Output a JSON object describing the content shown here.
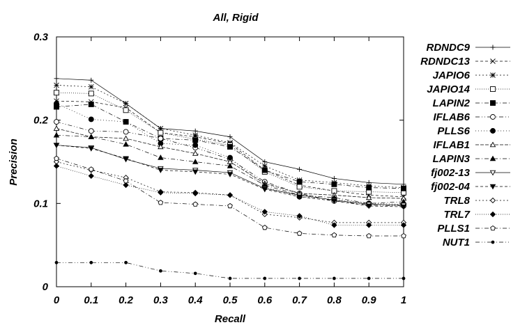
{
  "chart_data": {
    "type": "line",
    "title": "All, Rigid",
    "xlabel": "Recall",
    "ylabel": "Precision",
    "xlim": [
      0,
      1
    ],
    "ylim": [
      0,
      0.3
    ],
    "x": [
      0,
      0.1,
      0.2,
      0.3,
      0.4,
      0.5,
      0.6,
      0.7,
      0.8,
      0.9,
      1
    ],
    "x_ticks": [
      "0",
      "0.1",
      "0.2",
      "0.3",
      "0.4",
      "0.5",
      "0.6",
      "0.7",
      "0.8",
      "0.9",
      "1"
    ],
    "y_ticks": [
      {
        "value": 0,
        "label": "0"
      },
      {
        "value": 0.1,
        "label": "0.1"
      },
      {
        "value": 0.2,
        "label": "0.2"
      },
      {
        "value": 0.3,
        "label": "0.3"
      }
    ],
    "grid": false,
    "legend_position": "right",
    "series": [
      {
        "name": "RDNDC9",
        "marker": "plus",
        "dash": "",
        "values": [
          0.25,
          0.248,
          0.22,
          0.19,
          0.187,
          0.18,
          0.15,
          0.141,
          0.13,
          0.125,
          0.123
        ]
      },
      {
        "name": "RDNDC13",
        "marker": "x",
        "dash": "4,3",
        "values": [
          0.223,
          0.222,
          0.215,
          0.185,
          0.18,
          0.172,
          0.14,
          0.122,
          0.115,
          0.11,
          0.108
        ]
      },
      {
        "name": "JAPIO6",
        "marker": "star",
        "dash": "2,3",
        "values": [
          0.242,
          0.24,
          0.22,
          0.19,
          0.182,
          0.173,
          0.145,
          0.128,
          0.125,
          0.121,
          0.119
        ]
      },
      {
        "name": "JAPIO14",
        "marker": "square-open",
        "dash": "1,2",
        "values": [
          0.233,
          0.232,
          0.212,
          0.185,
          0.177,
          0.17,
          0.138,
          0.12,
          0.115,
          0.114,
          0.113
        ]
      },
      {
        "name": "LAPIN2",
        "marker": "square-filled",
        "dash": "6,3,1,3",
        "values": [
          0.216,
          0.219,
          0.198,
          0.178,
          0.176,
          0.168,
          0.14,
          0.126,
          0.123,
          0.119,
          0.118
        ]
      },
      {
        "name": "IFLAB6",
        "marker": "circle-open",
        "dash": "6,3,1,3,1,3",
        "values": [
          0.198,
          0.187,
          0.186,
          0.178,
          0.167,
          0.153,
          0.126,
          0.112,
          0.103,
          0.098,
          0.097
        ]
      },
      {
        "name": "PLLS6",
        "marker": "circle-filled",
        "dash": "1,3",
        "values": [
          0.22,
          0.201,
          0.198,
          0.172,
          0.17,
          0.155,
          0.12,
          0.108,
          0.105,
          0.1,
          0.099
        ]
      },
      {
        "name": "IFLAB1",
        "marker": "triangle-open",
        "dash": "5,2",
        "values": [
          0.19,
          0.18,
          0.178,
          0.168,
          0.16,
          0.15,
          0.124,
          0.112,
          0.11,
          0.107,
          0.106
        ]
      },
      {
        "name": "LAPIN3",
        "marker": "triangle-filled",
        "dash": "6,3,1,3",
        "values": [
          0.182,
          0.18,
          0.171,
          0.155,
          0.15,
          0.145,
          0.122,
          0.11,
          0.107,
          0.1,
          0.102
        ]
      },
      {
        "name": "fj002-13",
        "marker": "tri-down-open",
        "dash": "",
        "values": [
          0.17,
          0.167,
          0.153,
          0.142,
          0.14,
          0.137,
          0.118,
          0.11,
          0.104,
          0.099,
          0.098
        ]
      },
      {
        "name": "fj002-04",
        "marker": "tri-down-filled",
        "dash": "4,3",
        "values": [
          0.17,
          0.166,
          0.154,
          0.14,
          0.138,
          0.135,
          0.117,
          0.108,
          0.103,
          0.097,
          0.096
        ]
      },
      {
        "name": "TRL8",
        "marker": "diamond-open",
        "dash": "2,3",
        "values": [
          0.15,
          0.14,
          0.131,
          0.114,
          0.113,
          0.11,
          0.087,
          0.083,
          0.077,
          0.077,
          0.077
        ]
      },
      {
        "name": "TRL7",
        "marker": "diamond-filled",
        "dash": "1,2",
        "values": [
          0.145,
          0.133,
          0.122,
          0.113,
          0.112,
          0.11,
          0.09,
          0.085,
          0.074,
          0.074,
          0.074
        ]
      },
      {
        "name": "PLLS1",
        "marker": "pentagon-open",
        "dash": "6,3,1,3",
        "values": [
          0.154,
          0.141,
          0.127,
          0.101,
          0.099,
          0.097,
          0.071,
          0.064,
          0.062,
          0.061,
          0.061
        ]
      },
      {
        "name": "NUT1",
        "marker": "dot",
        "dash": "6,3,1,3,1,3",
        "values": [
          0.029,
          0.029,
          0.029,
          0.019,
          0.016,
          0.01,
          0.01,
          0.01,
          0.01,
          0.01,
          0.01
        ]
      }
    ]
  }
}
